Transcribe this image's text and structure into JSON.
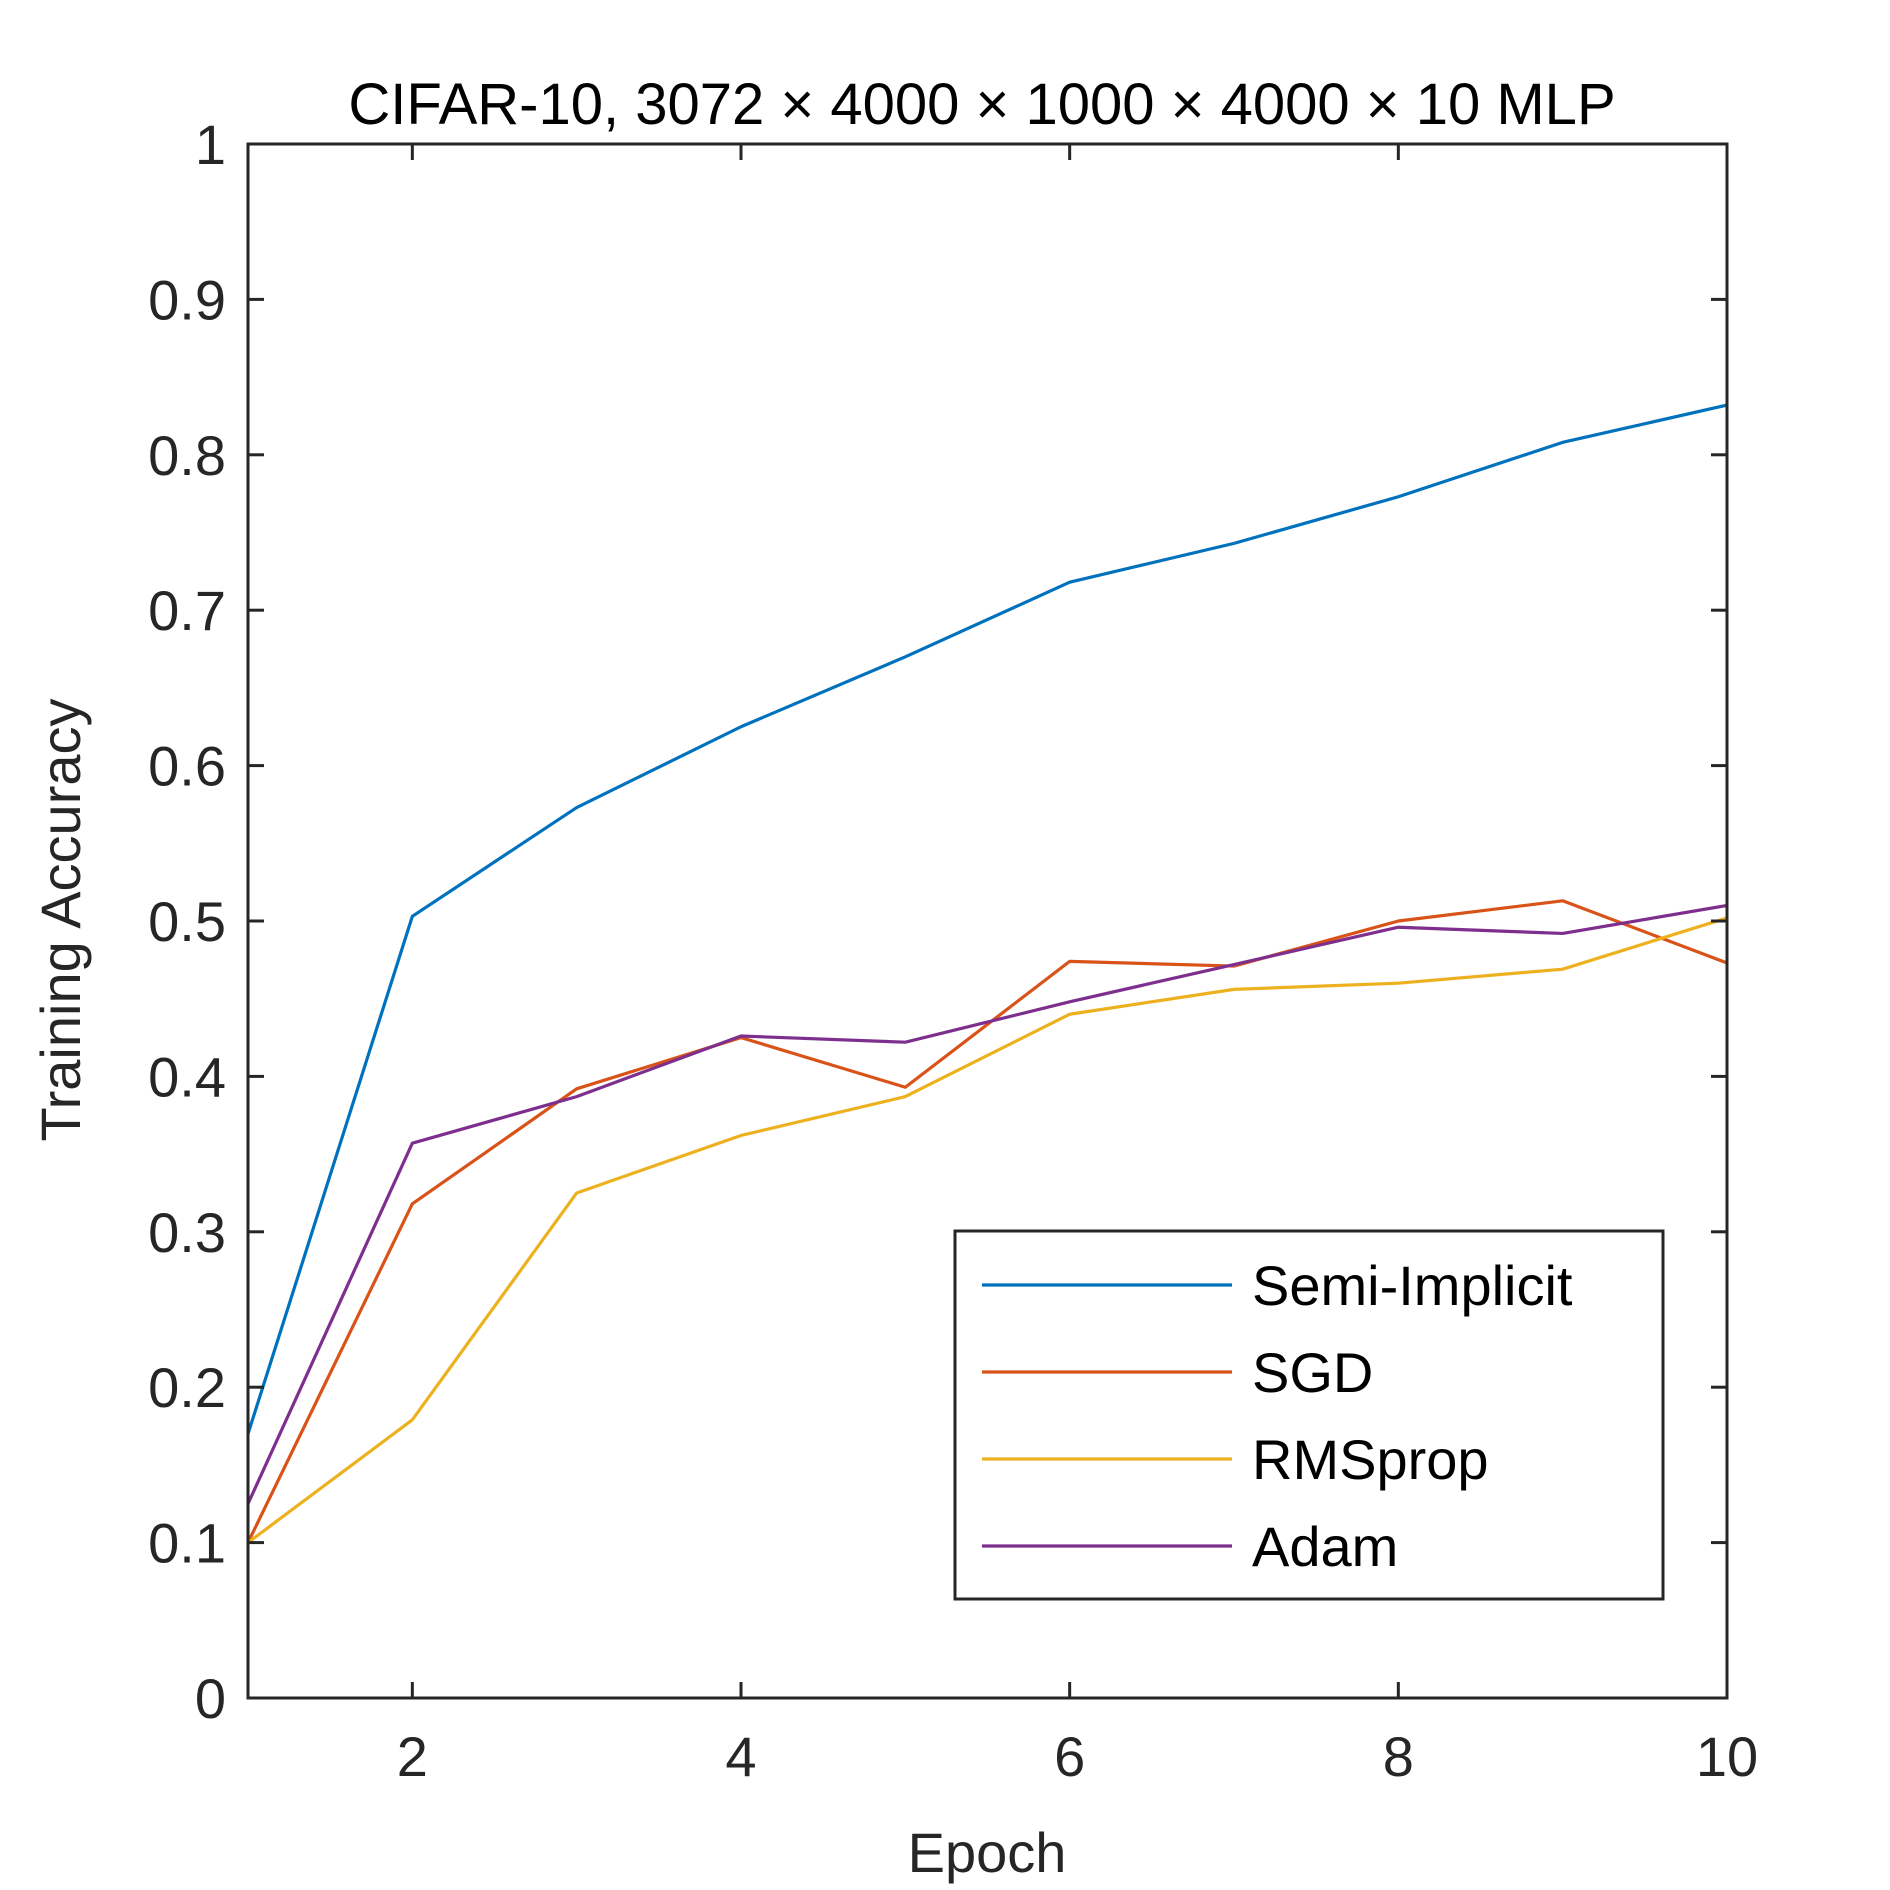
{
  "chart_data": {
    "type": "line",
    "title": "CIFAR-10, 3072 × 4000 × 1000 × 4000 × 10 MLP",
    "xlabel": "Epoch",
    "ylabel": "Training Accuracy",
    "xlim": [
      1,
      10
    ],
    "ylim": [
      0,
      1
    ],
    "xticks": [
      2,
      4,
      6,
      8,
      10
    ],
    "xtick_labels": [
      "2",
      "4",
      "6",
      "8",
      "10"
    ],
    "yticks": [
      0,
      0.1,
      0.2,
      0.3,
      0.4,
      0.5,
      0.6,
      0.7,
      0.8,
      0.9,
      1
    ],
    "ytick_labels": [
      "0",
      "0.1",
      "0.2",
      "0.3",
      "0.4",
      "0.5",
      "0.6",
      "0.7",
      "0.8",
      "0.9",
      "1"
    ],
    "grid": false,
    "legend_position": "bottom-right",
    "x": [
      1,
      2,
      3,
      4,
      5,
      6,
      7,
      8,
      9,
      10
    ],
    "series": [
      {
        "name": "Semi-Implicit",
        "color": "#0072BD",
        "values": [
          0.17,
          0.503,
          0.573,
          0.625,
          0.67,
          0.718,
          0.743,
          0.773,
          0.808,
          0.832
        ]
      },
      {
        "name": "SGD",
        "color": "#D95319",
        "values": [
          0.1,
          0.318,
          0.392,
          0.425,
          0.393,
          0.474,
          0.471,
          0.5,
          0.513,
          0.473
        ]
      },
      {
        "name": "RMSprop",
        "color": "#EDB120",
        "values": [
          0.1,
          0.179,
          0.325,
          0.362,
          0.387,
          0.44,
          0.456,
          0.46,
          0.469,
          0.502
        ]
      },
      {
        "name": "Adam",
        "color": "#7E2F8E",
        "values": [
          0.125,
          0.357,
          0.387,
          0.426,
          0.422,
          0.448,
          0.472,
          0.496,
          0.492,
          0.51
        ]
      }
    ]
  }
}
